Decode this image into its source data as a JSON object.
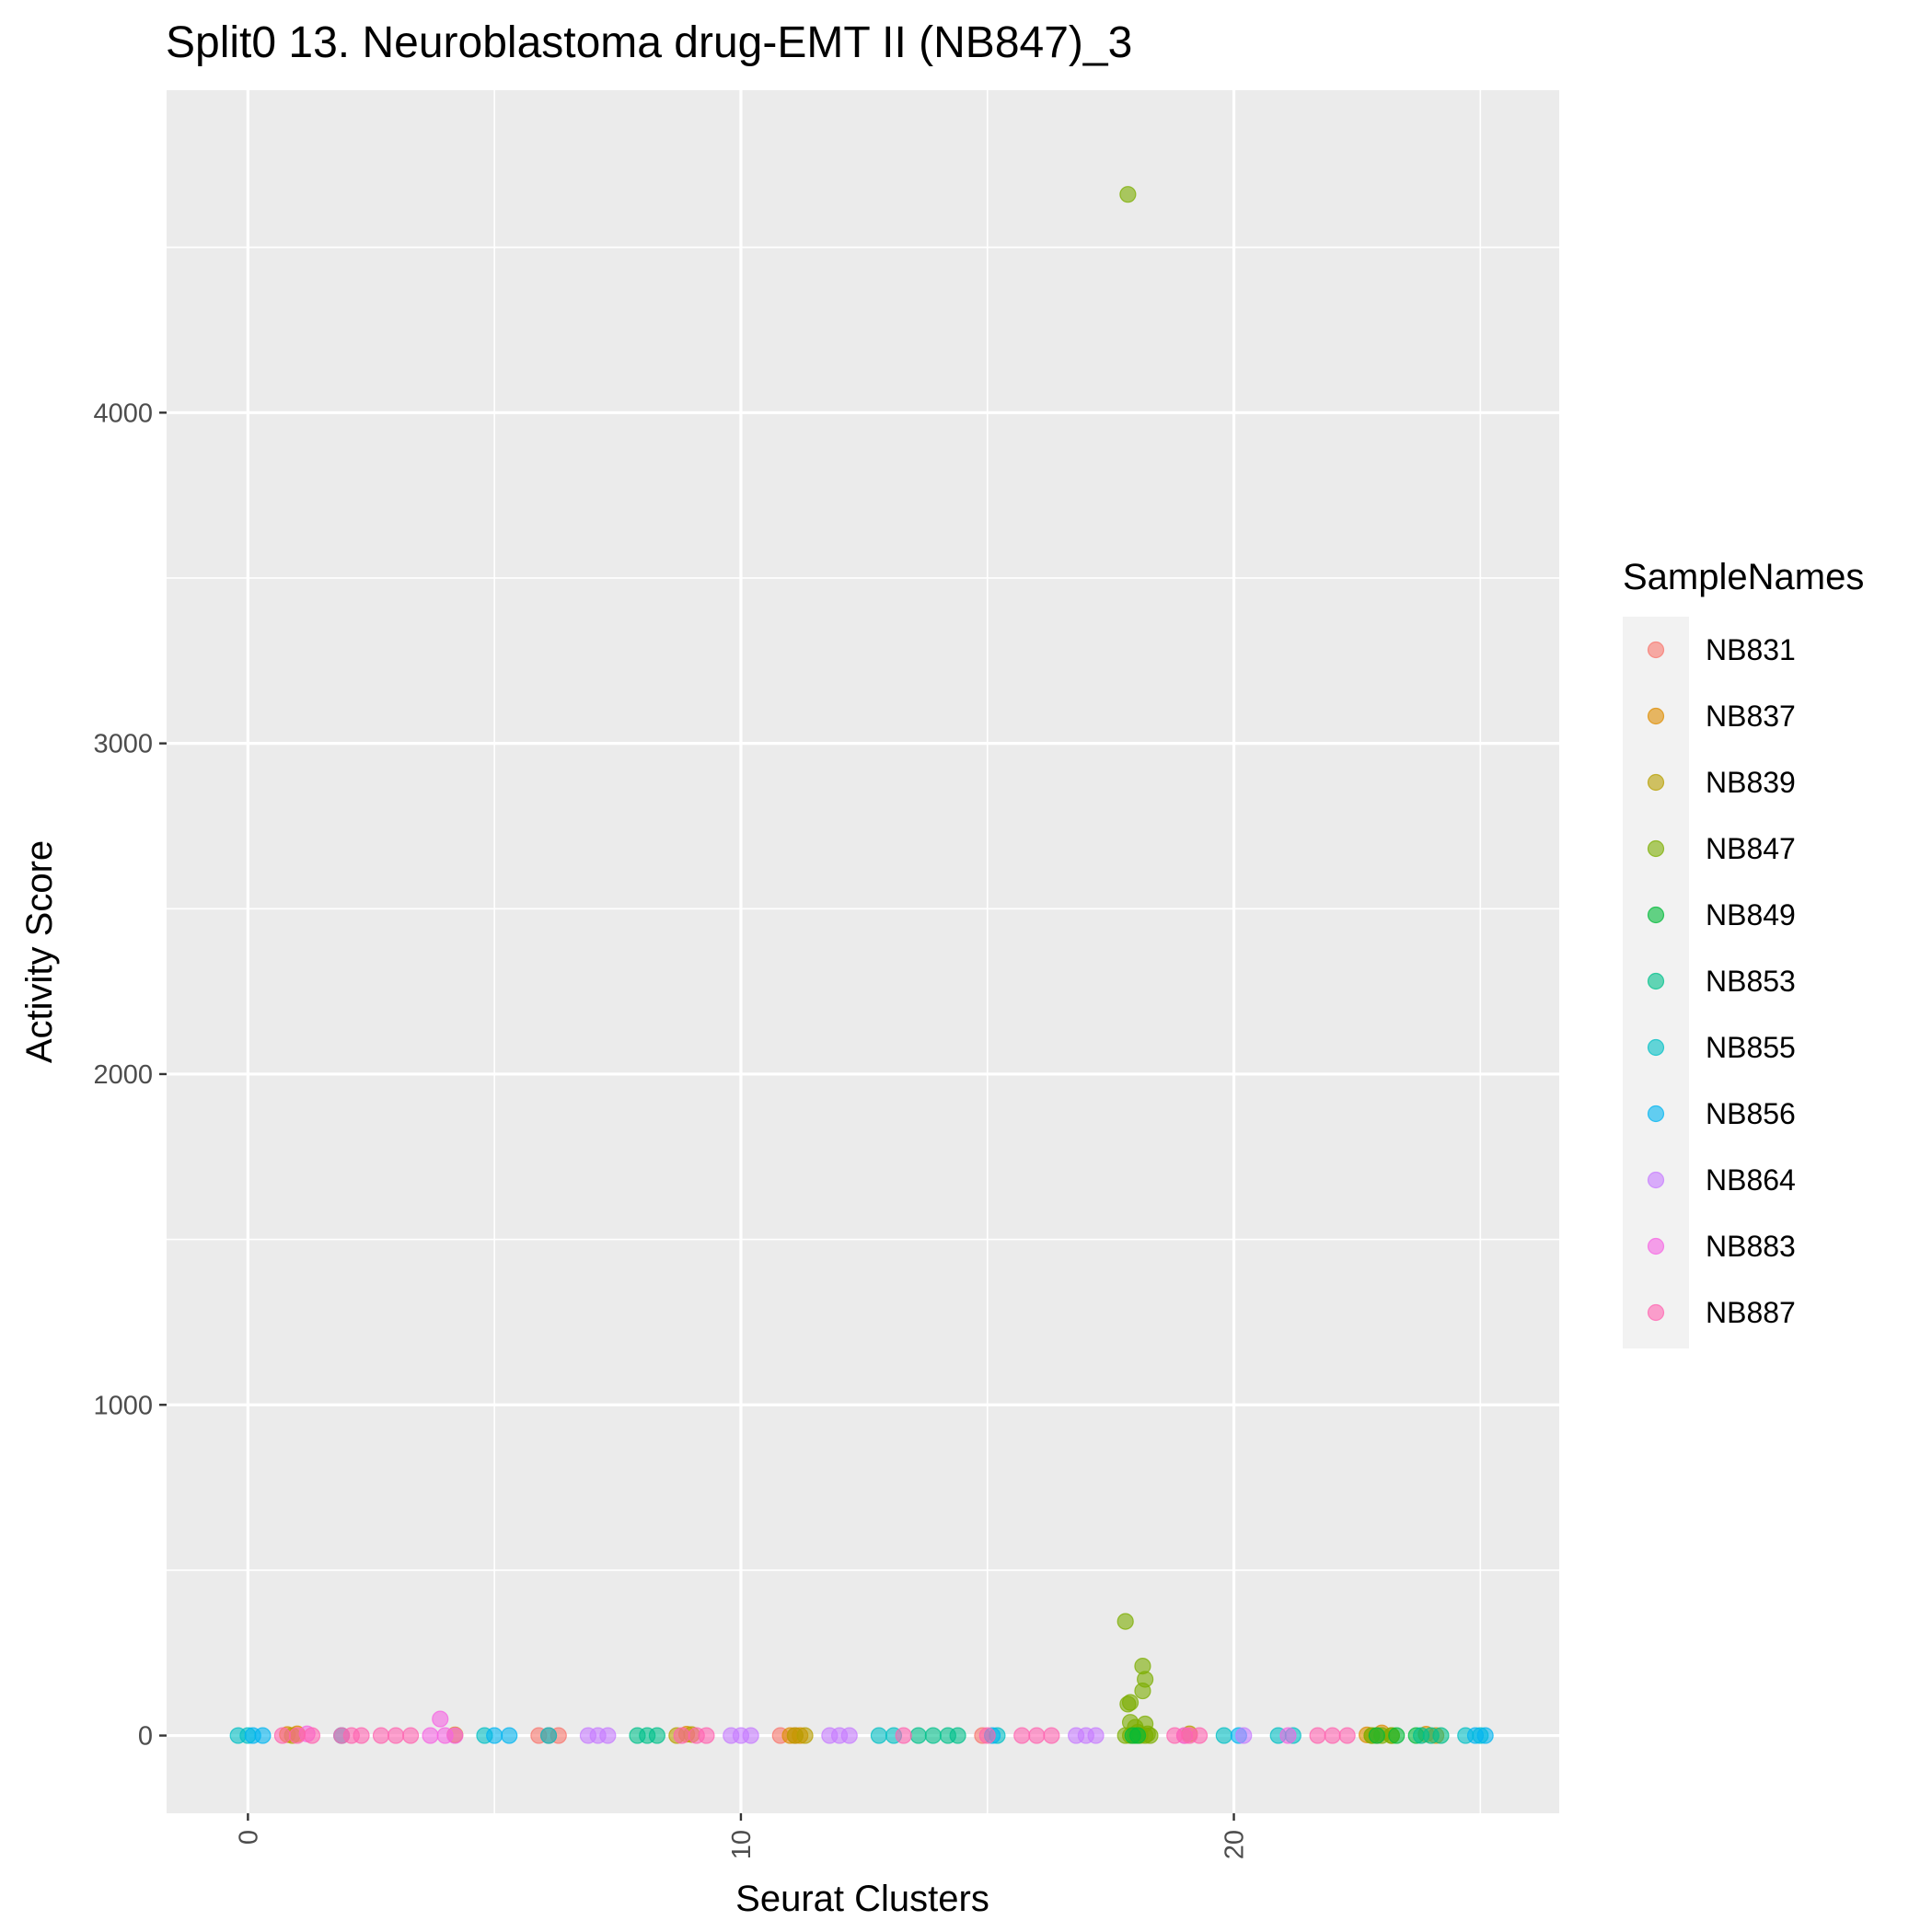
{
  "chart_data": {
    "type": "scatter",
    "title": "Split0 13. Neuroblastoma drug-EMT II (NB847)_3",
    "xlabel": "Seurat Clusters",
    "ylabel": "Activity Score",
    "xlim": [
      -1.65,
      26.6
    ],
    "ylim": [
      -235,
      4975
    ],
    "x_ticks": [
      0,
      10,
      20
    ],
    "y_ticks": [
      0,
      1000,
      2000,
      3000,
      4000
    ],
    "grid": true,
    "legend": {
      "title": "SampleNames",
      "position": "right"
    },
    "colors": {
      "panel": "#EBEBEB",
      "grid": "#FFFFFF"
    },
    "series": [
      {
        "name": "NB831",
        "color": "#F8766D",
        "points": [
          [
            5.9,
            0
          ],
          [
            6.1,
            0
          ],
          [
            6.3,
            0
          ],
          [
            10.8,
            0
          ],
          [
            11.1,
            0
          ],
          [
            14.9,
            0
          ],
          [
            19.0,
            0
          ],
          [
            22.9,
            0
          ]
        ]
      },
      {
        "name": "NB837",
        "color": "#DE8C00",
        "points": [
          [
            0.8,
            3
          ],
          [
            1.0,
            5
          ],
          [
            4.2,
            2
          ],
          [
            8.9,
            4
          ],
          [
            11.0,
            0
          ],
          [
            11.2,
            0
          ],
          [
            22.7,
            2
          ],
          [
            23.0,
            8
          ],
          [
            23.9,
            4
          ],
          [
            24.1,
            0
          ]
        ]
      },
      {
        "name": "NB839",
        "color": "#B79F00",
        "points": [
          [
            0.9,
            0
          ],
          [
            8.7,
            0
          ],
          [
            9.0,
            3
          ],
          [
            11.1,
            0
          ],
          [
            11.3,
            0
          ],
          [
            19.1,
            5
          ],
          [
            22.8,
            0
          ],
          [
            23.2,
            0
          ]
        ]
      },
      {
        "name": "NB847",
        "color": "#7CAE00",
        "points": [
          [
            17.85,
            4660
          ],
          [
            17.8,
            345
          ],
          [
            17.9,
            100
          ],
          [
            17.85,
            95
          ],
          [
            18.15,
            210
          ],
          [
            18.2,
            170
          ],
          [
            18.15,
            135
          ],
          [
            17.9,
            40
          ],
          [
            18.0,
            25
          ],
          [
            18.2,
            35
          ],
          [
            17.8,
            0
          ],
          [
            17.9,
            0
          ],
          [
            18.0,
            0
          ],
          [
            18.1,
            0
          ],
          [
            18.2,
            0
          ],
          [
            18.3,
            0
          ],
          [
            18.05,
            10
          ],
          [
            18.25,
            5
          ],
          [
            22.8,
            0
          ],
          [
            23.0,
            0
          ],
          [
            23.2,
            0
          ]
        ]
      },
      {
        "name": "NB849",
        "color": "#00BA38",
        "points": [
          [
            17.95,
            0
          ],
          [
            18.05,
            0
          ],
          [
            22.9,
            0
          ],
          [
            23.3,
            0
          ],
          [
            23.7,
            0
          ]
        ]
      },
      {
        "name": "NB853",
        "color": "#00C08B",
        "points": [
          [
            7.9,
            0
          ],
          [
            8.1,
            0
          ],
          [
            8.3,
            0
          ],
          [
            13.6,
            0
          ],
          [
            13.9,
            0
          ],
          [
            14.2,
            0
          ],
          [
            14.4,
            0
          ],
          [
            23.8,
            0
          ],
          [
            24.0,
            0
          ],
          [
            24.2,
            0
          ]
        ]
      },
      {
        "name": "NB855",
        "color": "#00BFC4",
        "points": [
          [
            -0.2,
            0
          ],
          [
            0.0,
            0
          ],
          [
            1.9,
            0
          ],
          [
            4.8,
            0
          ],
          [
            6.1,
            0
          ],
          [
            12.8,
            0
          ],
          [
            13.1,
            0
          ],
          [
            15.2,
            0
          ],
          [
            19.8,
            0
          ],
          [
            20.9,
            0
          ],
          [
            21.2,
            0
          ],
          [
            24.7,
            0
          ],
          [
            25.0,
            0
          ]
        ]
      },
      {
        "name": "NB856",
        "color": "#00B4F0",
        "points": [
          [
            0.1,
            0
          ],
          [
            0.3,
            0
          ],
          [
            5.0,
            0
          ],
          [
            5.3,
            0
          ],
          [
            15.1,
            0
          ],
          [
            20.1,
            0
          ],
          [
            24.9,
            0
          ],
          [
            25.1,
            0
          ]
        ]
      },
      {
        "name": "NB864",
        "color": "#C77CFF",
        "points": [
          [
            6.9,
            0
          ],
          [
            7.1,
            0
          ],
          [
            7.3,
            0
          ],
          [
            9.8,
            0
          ],
          [
            10.0,
            0
          ],
          [
            10.2,
            0
          ],
          [
            11.8,
            0
          ],
          [
            12.0,
            0
          ],
          [
            12.2,
            0
          ],
          [
            16.8,
            0
          ],
          [
            17.0,
            0
          ],
          [
            17.2,
            0
          ],
          [
            20.2,
            0
          ]
        ]
      },
      {
        "name": "NB883",
        "color": "#F564E3",
        "points": [
          [
            3.9,
            50
          ],
          [
            3.7,
            0
          ],
          [
            4.0,
            0
          ],
          [
            4.2,
            0
          ],
          [
            1.2,
            5
          ],
          [
            19.0,
            0
          ],
          [
            21.1,
            0
          ]
        ]
      },
      {
        "name": "NB887",
        "color": "#FF64B0",
        "points": [
          [
            0.7,
            0
          ],
          [
            1.0,
            0
          ],
          [
            1.3,
            0
          ],
          [
            1.9,
            0
          ],
          [
            2.1,
            0
          ],
          [
            2.3,
            0
          ],
          [
            2.7,
            0
          ],
          [
            3.0,
            0
          ],
          [
            3.3,
            0
          ],
          [
            8.8,
            0
          ],
          [
            9.1,
            0
          ],
          [
            9.3,
            0
          ],
          [
            13.3,
            0
          ],
          [
            15.0,
            0
          ],
          [
            15.7,
            0
          ],
          [
            16.0,
            0
          ],
          [
            16.3,
            0
          ],
          [
            18.8,
            0
          ],
          [
            19.1,
            0
          ],
          [
            19.3,
            0
          ],
          [
            21.7,
            0
          ],
          [
            22.0,
            0
          ],
          [
            22.3,
            0
          ]
        ]
      }
    ]
  }
}
